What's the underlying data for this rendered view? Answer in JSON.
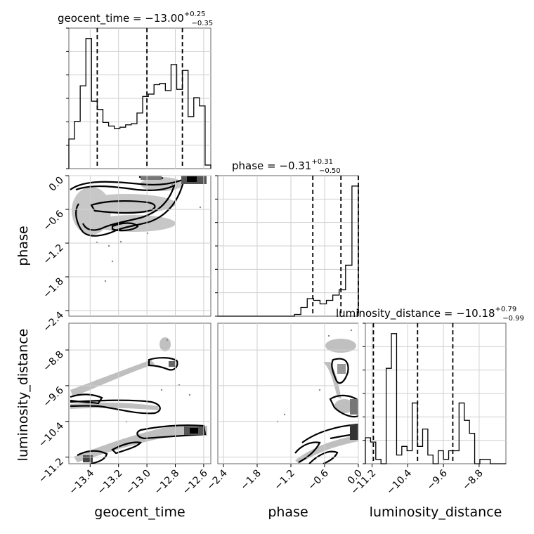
{
  "chart_data": {
    "type": "corner",
    "parameters": [
      "geocent_time",
      "phase",
      "luminosity_distance"
    ],
    "titles": [
      {
        "name": "geocent_time",
        "median": "−13.00",
        "plus": "+0.25",
        "minus": "−0.35"
      },
      {
        "name": "phase",
        "median": "−0.31",
        "plus": "+0.31",
        "minus": "−0.50"
      },
      {
        "name": "luminosity_distance",
        "median": "−10.18",
        "plus": "+0.79",
        "minus": "−0.99"
      }
    ],
    "ranges": [
      [
        -13.55,
        -12.55
      ],
      [
        -2.5,
        0.0
      ],
      [
        -11.35,
        -8.2
      ]
    ],
    "ticks": [
      {
        "values": [
          -13.4,
          -13.2,
          -13.0,
          -12.8,
          -12.6
        ],
        "labels": [
          "−13.4",
          "−13.2",
          "−13.0",
          "−12.8",
          "−12.6"
        ]
      },
      {
        "values": [
          -2.4,
          -1.8,
          -1.2,
          -0.6,
          0.0
        ],
        "labels": [
          "−2.4",
          "−1.8",
          "−1.2",
          "−0.6",
          "0.0"
        ]
      },
      {
        "values": [
          -11.2,
          -10.4,
          -9.6,
          -8.8
        ],
        "labels": [
          "−11.2",
          "−10.4",
          "−9.6",
          "−8.8"
        ]
      }
    ],
    "quantiles": [
      [
        -13.35,
        -13.0,
        -12.75
      ],
      [
        -0.81,
        -0.31,
        0.0
      ],
      [
        -11.17,
        -10.18,
        -9.39
      ]
    ],
    "hist": [
      {
        "x0": -13.55,
        "x1": -12.55,
        "counts": [
          25,
          40,
          70,
          110,
          57,
          50,
          39,
          36,
          34,
          35,
          37,
          38,
          47,
          61,
          63,
          71,
          72,
          66,
          88,
          67,
          83,
          44,
          60,
          53,
          3
        ]
      },
      {
        "x0": -2.5,
        "x1": 0.0,
        "counts": [
          0,
          0,
          0,
          0,
          0,
          0,
          0,
          0,
          0,
          0,
          0,
          0,
          1,
          5,
          10,
          9,
          7,
          9,
          12,
          15,
          29,
          74
        ]
      },
      {
        "x0": -11.35,
        "x1": -8.2,
        "counts": [
          6,
          5,
          1,
          0,
          22,
          30,
          2,
          4,
          3,
          14,
          4,
          8,
          2,
          0,
          3,
          1,
          3,
          3,
          14,
          10,
          7,
          0,
          1,
          1,
          0,
          0,
          0
        ]
      }
    ],
    "grid": true
  }
}
